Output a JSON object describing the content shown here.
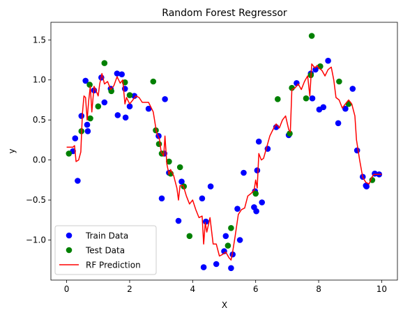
{
  "chart_data": {
    "type": "scatter",
    "title": "Random Forest Regressor",
    "xlabel": "X",
    "ylabel": "y",
    "xlim": [
      -0.5,
      10.5
    ],
    "ylim": [
      -1.5,
      1.72
    ],
    "x_ticks": [
      0,
      2,
      4,
      6,
      8,
      10
    ],
    "y_ticks": [
      -1.0,
      -0.5,
      0.0,
      0.5,
      1.0,
      1.5
    ],
    "x_tick_labels": [
      "0",
      "2",
      "4",
      "6",
      "8",
      "10"
    ],
    "y_tick_labels": [
      "−1.0",
      "−0.5",
      "0.0",
      "0.5",
      "1.0",
      "1.5"
    ],
    "grid": false,
    "legend_position": "lower-left",
    "series": [
      {
        "name": "Train Data",
        "kind": "scatter",
        "color": "#0000ff",
        "points": [
          [
            0.2,
            0.11
          ],
          [
            0.27,
            0.27
          ],
          [
            0.35,
            -0.26
          ],
          [
            0.47,
            0.55
          ],
          [
            0.6,
            0.99
          ],
          [
            0.65,
            0.44
          ],
          [
            0.67,
            0.36
          ],
          [
            0.87,
            0.87
          ],
          [
            1.1,
            1.03
          ],
          [
            1.2,
            0.72
          ],
          [
            1.4,
            0.89
          ],
          [
            1.6,
            1.08
          ],
          [
            1.62,
            0.56
          ],
          [
            1.75,
            1.07
          ],
          [
            1.85,
            0.89
          ],
          [
            1.87,
            0.53
          ],
          [
            2.0,
            0.67
          ],
          [
            2.15,
            0.8
          ],
          [
            2.6,
            0.64
          ],
          [
            2.92,
            0.3
          ],
          [
            3.02,
            -0.48
          ],
          [
            3.1,
            0.08
          ],
          [
            3.12,
            0.76
          ],
          [
            3.25,
            -0.16
          ],
          [
            3.55,
            -0.76
          ],
          [
            3.65,
            -0.27
          ],
          [
            4.3,
            -0.48
          ],
          [
            4.35,
            -1.34
          ],
          [
            4.42,
            -0.77
          ],
          [
            4.57,
            -0.33
          ],
          [
            4.75,
            -1.3
          ],
          [
            5.0,
            -1.14
          ],
          [
            5.05,
            -0.95
          ],
          [
            5.22,
            -1.35
          ],
          [
            5.27,
            -1.18
          ],
          [
            5.42,
            -0.61
          ],
          [
            5.5,
            -1.0
          ],
          [
            5.62,
            -0.16
          ],
          [
            5.95,
            -0.59
          ],
          [
            5.98,
            -0.39
          ],
          [
            6.02,
            -0.64
          ],
          [
            6.05,
            -0.13
          ],
          [
            6.1,
            0.23
          ],
          [
            6.2,
            -0.53
          ],
          [
            6.38,
            0.14
          ],
          [
            6.65,
            0.41
          ],
          [
            7.05,
            0.31
          ],
          [
            7.3,
            0.96
          ],
          [
            7.75,
            1.08
          ],
          [
            7.8,
            0.77
          ],
          [
            7.9,
            1.13
          ],
          [
            8.02,
            0.63
          ],
          [
            8.15,
            0.66
          ],
          [
            8.3,
            1.24
          ],
          [
            8.62,
            0.46
          ],
          [
            8.85,
            0.64
          ],
          [
            9.08,
            0.89
          ],
          [
            9.22,
            0.12
          ],
          [
            9.4,
            -0.21
          ],
          [
            9.5,
            -0.32
          ],
          [
            9.52,
            -0.33
          ],
          [
            9.78,
            -0.17
          ],
          [
            9.92,
            -0.18
          ]
        ]
      },
      {
        "name": "Test Data",
        "kind": "scatter",
        "color": "#008000",
        "points": [
          [
            0.07,
            0.08
          ],
          [
            0.47,
            0.36
          ],
          [
            0.73,
            0.94
          ],
          [
            0.75,
            0.52
          ],
          [
            1.0,
            0.67
          ],
          [
            1.2,
            1.21
          ],
          [
            1.42,
            0.86
          ],
          [
            1.85,
            0.97
          ],
          [
            2.0,
            0.81
          ],
          [
            2.75,
            0.98
          ],
          [
            2.83,
            0.37
          ],
          [
            2.93,
            0.2
          ],
          [
            3.02,
            0.08
          ],
          [
            3.25,
            -0.02
          ],
          [
            3.3,
            -0.17
          ],
          [
            3.6,
            -0.09
          ],
          [
            3.72,
            -0.33
          ],
          [
            3.9,
            -0.95
          ],
          [
            5.12,
            -1.07
          ],
          [
            5.22,
            -0.85
          ],
          [
            6.0,
            -0.42
          ],
          [
            6.7,
            0.76
          ],
          [
            7.08,
            0.33
          ],
          [
            7.15,
            0.9
          ],
          [
            7.6,
            0.77
          ],
          [
            7.75,
            1.06
          ],
          [
            7.78,
            1.55
          ],
          [
            8.05,
            1.17
          ],
          [
            8.65,
            0.98
          ],
          [
            8.95,
            0.7
          ],
          [
            9.7,
            -0.25
          ]
        ]
      },
      {
        "name": "RF Prediction",
        "kind": "line",
        "color": "#ff0000",
        "points": [
          [
            0.0,
            0.16
          ],
          [
            0.2,
            0.16
          ],
          [
            0.25,
            0.18
          ],
          [
            0.3,
            -0.02
          ],
          [
            0.38,
            0.0
          ],
          [
            0.45,
            0.1
          ],
          [
            0.5,
            0.58
          ],
          [
            0.55,
            0.8
          ],
          [
            0.6,
            0.78
          ],
          [
            0.65,
            0.5
          ],
          [
            0.7,
            0.74
          ],
          [
            0.75,
            0.92
          ],
          [
            0.8,
            0.6
          ],
          [
            0.87,
            0.92
          ],
          [
            0.95,
            0.85
          ],
          [
            1.0,
            0.8
          ],
          [
            1.05,
            0.95
          ],
          [
            1.12,
            1.08
          ],
          [
            1.2,
            0.95
          ],
          [
            1.3,
            0.98
          ],
          [
            1.4,
            0.88
          ],
          [
            1.5,
            0.93
          ],
          [
            1.6,
            1.04
          ],
          [
            1.7,
            0.96
          ],
          [
            1.78,
            1.0
          ],
          [
            1.85,
            0.7
          ],
          [
            1.9,
            0.78
          ],
          [
            2.0,
            0.7
          ],
          [
            2.1,
            0.75
          ],
          [
            2.2,
            0.8
          ],
          [
            2.3,
            0.78
          ],
          [
            2.4,
            0.72
          ],
          [
            2.5,
            0.72
          ],
          [
            2.6,
            0.72
          ],
          [
            2.65,
            0.68
          ],
          [
            2.75,
            0.6
          ],
          [
            2.85,
            0.35
          ],
          [
            2.95,
            0.25
          ],
          [
            3.0,
            0.1
          ],
          [
            3.08,
            0.05
          ],
          [
            3.12,
            0.3
          ],
          [
            3.18,
            -0.05
          ],
          [
            3.25,
            -0.18
          ],
          [
            3.3,
            -0.12
          ],
          [
            3.4,
            -0.2
          ],
          [
            3.5,
            -0.35
          ],
          [
            3.55,
            -0.5
          ],
          [
            3.6,
            -0.32
          ],
          [
            3.7,
            -0.32
          ],
          [
            3.8,
            -0.45
          ],
          [
            3.9,
            -0.55
          ],
          [
            4.0,
            -0.5
          ],
          [
            4.1,
            -0.62
          ],
          [
            4.2,
            -0.72
          ],
          [
            4.3,
            -0.7
          ],
          [
            4.35,
            -1.05
          ],
          [
            4.4,
            -0.78
          ],
          [
            4.45,
            -0.9
          ],
          [
            4.55,
            -0.72
          ],
          [
            4.65,
            -1.05
          ],
          [
            4.75,
            -1.05
          ],
          [
            4.85,
            -1.2
          ],
          [
            4.95,
            -1.18
          ],
          [
            5.05,
            -1.15
          ],
          [
            5.15,
            -1.22
          ],
          [
            5.22,
            -1.25
          ],
          [
            5.28,
            -1.12
          ],
          [
            5.35,
            -0.95
          ],
          [
            5.45,
            -0.68
          ],
          [
            5.55,
            -0.62
          ],
          [
            5.65,
            -0.6
          ],
          [
            5.75,
            -0.45
          ],
          [
            5.85,
            -0.42
          ],
          [
            5.95,
            -0.38
          ],
          [
            6.0,
            -0.25
          ],
          [
            6.05,
            -0.35
          ],
          [
            6.1,
            0.08
          ],
          [
            6.18,
            0.0
          ],
          [
            6.25,
            0.02
          ],
          [
            6.35,
            0.16
          ],
          [
            6.45,
            0.3
          ],
          [
            6.55,
            0.38
          ],
          [
            6.65,
            0.45
          ],
          [
            6.75,
            0.4
          ],
          [
            6.85,
            0.5
          ],
          [
            6.95,
            0.55
          ],
          [
            7.05,
            0.38
          ],
          [
            7.1,
            0.35
          ],
          [
            7.15,
            0.88
          ],
          [
            7.25,
            0.9
          ],
          [
            7.35,
            0.95
          ],
          [
            7.45,
            0.88
          ],
          [
            7.55,
            0.98
          ],
          [
            7.65,
            1.05
          ],
          [
            7.72,
            0.8
          ],
          [
            7.78,
            1.2
          ],
          [
            7.88,
            1.15
          ],
          [
            7.95,
            1.18
          ],
          [
            8.0,
            1.15
          ],
          [
            8.1,
            1.12
          ],
          [
            8.2,
            1.05
          ],
          [
            8.3,
            1.13
          ],
          [
            8.4,
            1.16
          ],
          [
            8.48,
            1.0
          ],
          [
            8.55,
            0.78
          ],
          [
            8.65,
            0.75
          ],
          [
            8.75,
            0.65
          ],
          [
            8.85,
            0.7
          ],
          [
            8.95,
            0.75
          ],
          [
            9.05,
            0.7
          ],
          [
            9.15,
            0.55
          ],
          [
            9.2,
            0.25
          ],
          [
            9.3,
            0.0
          ],
          [
            9.4,
            -0.22
          ],
          [
            9.5,
            -0.28
          ],
          [
            9.6,
            -0.3
          ],
          [
            9.68,
            -0.22
          ],
          [
            9.75,
            -0.18
          ],
          [
            9.85,
            -0.18
          ],
          [
            10.0,
            -0.18
          ]
        ]
      }
    ]
  }
}
